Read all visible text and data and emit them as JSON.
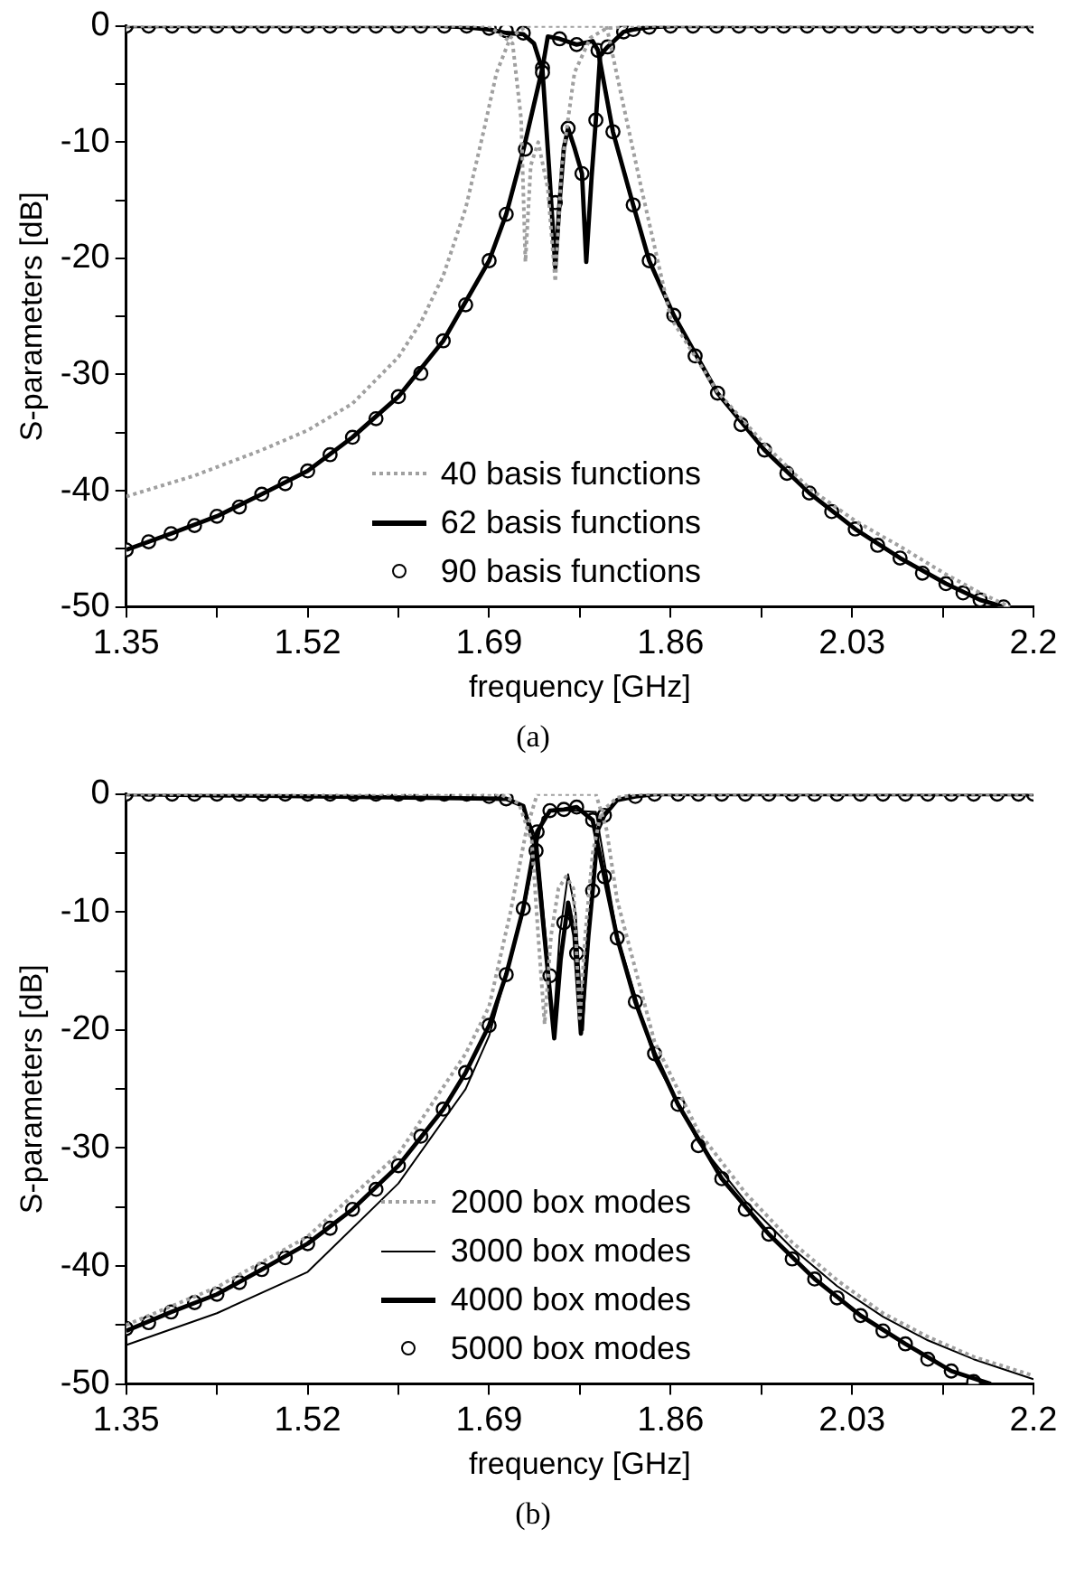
{
  "chart_data": [
    {
      "type": "line",
      "xlabel": "frequency [GHz]",
      "ylabel": "S-parameters [dB]",
      "annotations": [
        "(a)"
      ],
      "grid": false,
      "legend": "bottom",
      "xlim": [
        1.35,
        2.2
      ],
      "xticks": [
        1.35,
        {
          "value": 1.435,
          "label": null
        },
        1.52,
        {
          "value": 1.605,
          "label": null
        },
        1.69,
        {
          "value": 1.775,
          "label": null
        },
        1.86,
        {
          "value": 1.945,
          "label": null
        },
        2.03,
        {
          "value": 2.115,
          "label": null
        },
        2.2
      ],
      "ylim": [
        -50,
        0
      ],
      "yticks": [
        -50,
        {
          "value": -45,
          "label": null
        },
        -40,
        {
          "value": -35,
          "label": null
        },
        -30,
        {
          "value": -25,
          "label": null
        },
        -20,
        {
          "value": -15,
          "label": null
        },
        -10,
        {
          "value": -5,
          "label": null
        },
        0
      ],
      "series": [
        {
          "name": "40 basis functions",
          "type": "line",
          "color": "#a0a0a0",
          "line_style": "dotted",
          "marker": "none",
          "x": [
            1.35,
            1.414,
            1.477,
            1.52,
            1.562,
            1.605,
            1.626,
            1.647,
            1.668,
            1.685,
            1.697,
            1.71,
            1.725,
            1.8,
            1.816,
            1.832,
            1.86,
            1.904,
            1.948,
            1.99,
            2.033,
            2.075,
            2.118,
            2.15,
            2.178
          ],
          "values": [
            -40.5,
            -38.7,
            -36.5,
            -34.8,
            -32.5,
            -28.5,
            -25.5,
            -21.5,
            -15.7,
            -9,
            -4,
            -1,
            0,
            0,
            -6.9,
            -13.7,
            -25.1,
            -31.5,
            -36,
            -39.8,
            -42.6,
            -44.8,
            -47.2,
            -48.8,
            -50
          ]
        },
        {
          "type": "line",
          "color": "#a0a0a0",
          "line_style": "dotted",
          "marker": "none",
          "x": [
            1.35,
            1.69,
            1.712,
            1.72,
            1.724,
            1.729,
            1.736,
            1.745,
            1.752,
            1.758,
            1.77,
            1.785,
            1.8,
            1.82,
            2.2
          ],
          "values": [
            0,
            0,
            -1.5,
            -8,
            -20.3,
            -12,
            -10,
            -14,
            -22,
            -12,
            -4,
            -1,
            -0.2,
            0,
            0
          ]
        },
        {
          "name": "62 basis functions",
          "type": "line",
          "color": "#000000",
          "line_style": "solid",
          "marker": "none",
          "x": [
            1.35,
            1.392,
            1.435,
            1.477,
            1.52,
            1.562,
            1.605,
            1.647,
            1.69,
            1.706,
            1.722,
            1.74,
            1.745,
            1.756,
            1.772,
            1.787,
            1.792,
            1.806,
            1.825,
            1.84,
            1.863,
            1.904,
            1.948,
            1.99,
            2.033,
            2.075,
            2.118,
            2.15,
            2.172
          ],
          "values": [
            -45.1,
            -43.7,
            -42.2,
            -40.3,
            -38.3,
            -35.4,
            -31.9,
            -27.1,
            -20.2,
            -16.2,
            -10.7,
            -3.6,
            -0.9,
            -1.1,
            -1.6,
            -1.3,
            -2.1,
            -9.1,
            -15.4,
            -20.2,
            -24.9,
            -31.6,
            -36.5,
            -40.2,
            -43.3,
            -45.8,
            -48,
            -49.4,
            -50
          ]
        },
        {
          "type": "line",
          "color": "#000000",
          "line_style": "solid",
          "marker": "none",
          "x": [
            1.35,
            1.647,
            1.668,
            1.69,
            1.706,
            1.722,
            1.732,
            1.74,
            1.746,
            1.752,
            1.756,
            1.76,
            1.764,
            1.77,
            1.777,
            1.781,
            1.786,
            1.79,
            1.794,
            1.801,
            1.816,
            1.825,
            1.84,
            1.863,
            2.2
          ],
          "values": [
            0,
            0,
            -0.1,
            -0.3,
            -0.6,
            -0.7,
            -1.5,
            -3.8,
            -12,
            -20.8,
            -15.2,
            -10.5,
            -8.8,
            -10.5,
            -12.7,
            -20.3,
            -13,
            -8.1,
            -2.5,
            -1.8,
            -0.5,
            -0.3,
            -0.1,
            0,
            0
          ]
        },
        {
          "name": "90 basis functions",
          "type": "scatter",
          "color": "#000000",
          "marker": "circle",
          "x": [
            1.35,
            1.371,
            1.392,
            1.414,
            1.435,
            1.456,
            1.477,
            1.499,
            1.52,
            1.541,
            1.562,
            1.584,
            1.605,
            1.626,
            1.647,
            1.668,
            1.69,
            1.706,
            1.724,
            1.74,
            1.756,
            1.772,
            1.792,
            1.806,
            1.825,
            1.84,
            1.863,
            1.883,
            1.904,
            1.926,
            1.948,
            1.969,
            1.99,
            2.011,
            2.033,
            2.054,
            2.075,
            2.096,
            2.118,
            2.134,
            2.15,
            2.172,
            1.35,
            1.371,
            1.393,
            1.414,
            1.435,
            1.456,
            1.478,
            1.499,
            1.52,
            1.541,
            1.563,
            1.584,
            1.605,
            1.626,
            1.648,
            1.669,
            1.69,
            1.706,
            1.722,
            1.74,
            1.752,
            1.764,
            1.777,
            1.79,
            1.801,
            1.816,
            1.825,
            1.84,
            1.86,
            1.881,
            1.903,
            1.924,
            1.945,
            1.966,
            1.988,
            2.009,
            2.03,
            2.051,
            2.073,
            2.094,
            2.115,
            2.136,
            2.158,
            2.179,
            2.2
          ],
          "values": [
            -45.1,
            -44.4,
            -43.7,
            -43,
            -42.2,
            -41.4,
            -40.3,
            -39.4,
            -38.3,
            -36.9,
            -35.4,
            -33.8,
            -31.9,
            -29.9,
            -27.1,
            -24,
            -20.2,
            -16.2,
            -10.6,
            -3.6,
            -1.1,
            -1.6,
            -2.1,
            -9.1,
            -15.4,
            -20.2,
            -24.9,
            -28.4,
            -31.6,
            -34.3,
            -36.5,
            -38.5,
            -40.2,
            -41.8,
            -43.3,
            -44.7,
            -45.8,
            -47.1,
            -48,
            -48.8,
            -49.4,
            -50,
            0,
            0,
            0,
            0,
            0,
            0,
            0,
            0,
            0,
            0,
            0,
            0,
            0,
            0,
            0,
            0,
            -0.2,
            -0.4,
            -0.6,
            -4,
            -15.2,
            -8.8,
            -12.7,
            -8.1,
            -1.8,
            -0.5,
            -0.3,
            -0.1,
            0,
            0,
            0,
            0,
            0,
            0,
            0,
            0,
            0,
            0,
            0,
            0,
            0,
            0,
            0,
            0,
            0
          ]
        }
      ]
    },
    {
      "type": "line",
      "xlabel": "frequency [GHz]",
      "ylabel": "S-parameters [dB]",
      "annotations": [
        "(b)"
      ],
      "grid": false,
      "legend": "bottom",
      "xlim": [
        1.35,
        2.2
      ],
      "xticks": [
        1.35,
        {
          "value": 1.435,
          "label": null
        },
        1.52,
        {
          "value": 1.605,
          "label": null
        },
        1.69,
        {
          "value": 1.775,
          "label": null
        },
        1.86,
        {
          "value": 1.945,
          "label": null
        },
        2.03,
        {
          "value": 2.115,
          "label": null
        },
        2.2
      ],
      "ylim": [
        -50,
        0
      ],
      "yticks": [
        -50,
        {
          "value": -45,
          "label": null
        },
        -40,
        {
          "value": -35,
          "label": null
        },
        -30,
        {
          "value": -25,
          "label": null
        },
        -20,
        {
          "value": -15,
          "label": null
        },
        -10,
        {
          "value": -5,
          "label": null
        },
        0
      ],
      "series": [
        {
          "name": "2000 box modes",
          "type": "line",
          "color": "#a0a0a0",
          "line_style": "dotted",
          "marker": "none",
          "x": [
            1.35,
            1.435,
            1.52,
            1.605,
            1.668,
            1.69,
            1.71,
            1.725,
            1.735,
            1.79,
            1.8,
            1.81,
            1.845,
            1.886,
            1.93,
            1.974,
            2.016,
            2.059,
            2.101,
            2.144,
            2.2
          ],
          "values": [
            -45,
            -41.8,
            -37.5,
            -30.5,
            -22,
            -18,
            -10,
            -3,
            0,
            0,
            -3,
            -9,
            -21,
            -28.6,
            -33.8,
            -38,
            -41.2,
            -44,
            -46,
            -47.7,
            -49.3
          ]
        },
        {
          "type": "line",
          "color": "#a0a0a0",
          "line_style": "dotted",
          "marker": "none",
          "x": [
            1.35,
            1.7,
            1.718,
            1.73,
            1.736,
            1.742,
            1.748,
            1.755,
            1.762,
            1.769,
            1.775,
            1.78,
            1.787,
            1.795,
            1.81,
            1.83,
            2.2
          ],
          "values": [
            0,
            0,
            -0.8,
            -4,
            -12,
            -19.5,
            -12,
            -8,
            -7,
            -8,
            -19,
            -12,
            -5,
            -1.5,
            -0.3,
            0,
            0
          ]
        },
        {
          "name": "3000 box modes",
          "type": "line",
          "color": "#000000",
          "line_style": "solid",
          "marker": "none",
          "x": [
            1.35,
            1.435,
            1.52,
            1.605,
            1.668,
            1.69,
            1.722,
            1.74,
            1.75,
            1.79,
            1.81,
            1.845,
            1.886,
            1.93,
            1.974,
            2.016,
            2.059,
            2.101,
            2.144,
            2.2
          ],
          "values": [
            -46.7,
            -44,
            -40.5,
            -33,
            -25,
            -20.5,
            -10,
            -2,
            -1.3,
            -1.5,
            -12,
            -22.5,
            -29.5,
            -34.5,
            -38.5,
            -41.7,
            -44.3,
            -46.3,
            -47.9,
            -49.6
          ]
        },
        {
          "type": "line",
          "color": "#000000",
          "line_style": "solid",
          "marker": "none",
          "x": [
            1.35,
            1.706,
            1.722,
            1.735,
            1.745,
            1.75,
            1.756,
            1.764,
            1.771,
            1.778,
            1.783,
            1.787,
            1.792,
            1.798,
            1.81,
            1.827,
            1.845,
            2.2
          ],
          "values": [
            0,
            -0.4,
            -1,
            -4,
            -14,
            -20,
            -12,
            -6.8,
            -10,
            -20,
            -11,
            -7,
            -3,
            -1.6,
            -0.5,
            -0.2,
            0,
            0
          ]
        },
        {
          "name": "4000 box modes",
          "type": "line",
          "color": "#000000",
          "line_style": "solid",
          "marker": "none",
          "x": [
            1.35,
            1.392,
            1.435,
            1.477,
            1.52,
            1.562,
            1.605,
            1.647,
            1.668,
            1.69,
            1.706,
            1.722,
            1.735,
            1.747,
            1.76,
            1.772,
            1.787,
            1.798,
            1.81,
            1.827,
            1.845,
            1.867,
            1.908,
            1.952,
            1.995,
            2.038,
            2.08,
            2.123,
            2.16
          ],
          "values": [
            -45.5,
            -43.9,
            -42.4,
            -40.3,
            -38.1,
            -35.2,
            -31.5,
            -26.7,
            -23.6,
            -19.6,
            -15.3,
            -9.7,
            -3.2,
            -1.4,
            -1.3,
            -1.1,
            -2.2,
            -7,
            -12.2,
            -17.6,
            -22,
            -26.3,
            -32.6,
            -37.3,
            -41.1,
            -44.2,
            -46.6,
            -48.9,
            -50
          ]
        },
        {
          "type": "line",
          "color": "#000000",
          "line_style": "solid",
          "marker": "none",
          "x": [
            1.35,
            1.706,
            1.722,
            1.734,
            1.745,
            1.751,
            1.757,
            1.764,
            1.77,
            1.776,
            1.783,
            1.787,
            1.792,
            1.798,
            1.81,
            1.827,
            1.845,
            2.2
          ],
          "values": [
            0,
            -0.4,
            -1,
            -4.8,
            -15,
            -20.7,
            -14,
            -9.2,
            -12,
            -20.3,
            -12,
            -8.2,
            -3,
            -1.8,
            -0.5,
            -0.2,
            0,
            0
          ]
        },
        {
          "name": "5000 box modes",
          "type": "scatter",
          "color": "#000000",
          "marker": "circle",
          "x": [
            1.35,
            1.371,
            1.392,
            1.414,
            1.435,
            1.456,
            1.477,
            1.499,
            1.52,
            1.541,
            1.562,
            1.584,
            1.605,
            1.626,
            1.647,
            1.668,
            1.69,
            1.706,
            1.722,
            1.735,
            1.747,
            1.76,
            1.772,
            1.787,
            1.798,
            1.81,
            1.827,
            1.845,
            1.867,
            1.886,
            1.908,
            1.93,
            1.952,
            1.974,
            1.995,
            2.016,
            2.038,
            2.059,
            2.08,
            2.101,
            2.123,
            2.144,
            1.35,
            1.371,
            1.393,
            1.414,
            1.435,
            1.456,
            1.478,
            1.499,
            1.52,
            1.541,
            1.563,
            1.584,
            1.605,
            1.626,
            1.648,
            1.669,
            1.69,
            1.706,
            1.734,
            1.747,
            1.76,
            1.772,
            1.787,
            1.798,
            1.827,
            1.845,
            1.867,
            1.886,
            1.908,
            1.93,
            1.952,
            1.974,
            1.995,
            2.016,
            2.038,
            2.059,
            2.08,
            2.101,
            2.123,
            2.144,
            2.166,
            2.186,
            2.2
          ],
          "values": [
            -45.3,
            -44.8,
            -43.9,
            -43.1,
            -42.4,
            -41.4,
            -40.3,
            -39.3,
            -38.1,
            -36.8,
            -35.2,
            -33.5,
            -31.5,
            -29,
            -26.7,
            -23.6,
            -19.6,
            -15.3,
            -9.7,
            -3.2,
            -1.4,
            -1.3,
            -1.1,
            -2.2,
            -7,
            -12.2,
            -17.6,
            -22,
            -26.3,
            -29.8,
            -32.6,
            -35.2,
            -37.3,
            -39.4,
            -41.1,
            -42.7,
            -44.2,
            -45.5,
            -46.6,
            -47.9,
            -48.9,
            -49.8,
            0,
            0,
            0,
            0,
            0,
            0,
            0,
            0,
            0,
            0,
            0,
            0,
            0,
            0,
            0,
            0,
            -0.2,
            -0.4,
            -4.8,
            -15.4,
            -10.9,
            -13.5,
            -8.2,
            -1.8,
            -0.2,
            0,
            0,
            0,
            0,
            0,
            0,
            0,
            0,
            0,
            0,
            0,
            0,
            0,
            0,
            0,
            0,
            0,
            0
          ]
        }
      ]
    }
  ]
}
